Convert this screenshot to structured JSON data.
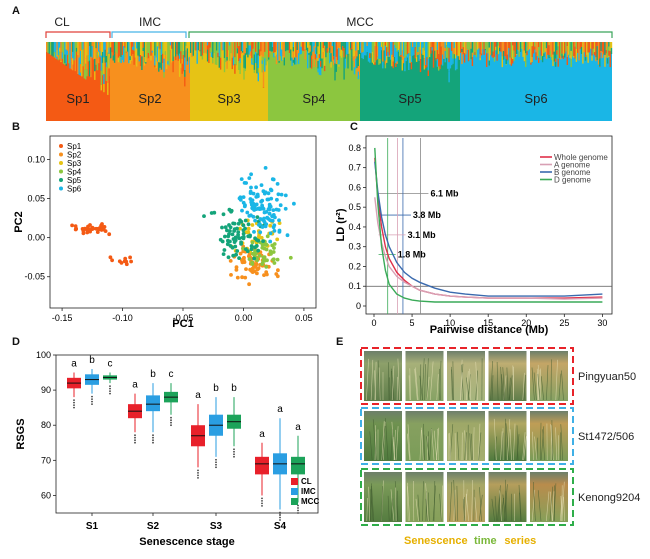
{
  "panel_labels": {
    "a": "A",
    "b": "B",
    "c": "C",
    "d": "D",
    "e": "E"
  },
  "panel_a": {
    "groups": [
      {
        "label": "CL",
        "color": "#e0413a"
      },
      {
        "label": "IMC",
        "color": "#47b3e6"
      },
      {
        "label": "MCC",
        "color": "#3aa45a"
      }
    ],
    "subpops": [
      {
        "label": "Sp1",
        "color": "#f45a14"
      },
      {
        "label": "Sp2",
        "color": "#f7901e"
      },
      {
        "label": "Sp3",
        "color": "#e6c315"
      },
      {
        "label": "Sp4",
        "color": "#8cc63f"
      },
      {
        "label": "Sp5",
        "color": "#14a47a"
      },
      {
        "label": "Sp6",
        "color": "#1ab6e6"
      }
    ]
  },
  "chart_data": [
    {
      "type": "scatter",
      "xlabel": "PC1",
      "ylabel": "PC2",
      "xlim": [
        -0.16,
        0.06
      ],
      "ylim": [
        -0.09,
        0.13
      ],
      "xticks": [
        "-0.15",
        "-0.10",
        "-0.05",
        "0.00",
        "0.05"
      ],
      "yticks": [
        "-0.05",
        "0.00",
        "0.05",
        "0.10"
      ],
      "legend": [
        "Sp1",
        "Sp2",
        "Sp3",
        "Sp4",
        "Sp5",
        "Sp6"
      ],
      "legend_colors": [
        "#f45a14",
        "#f7901e",
        "#e6c315",
        "#8cc63f",
        "#14a47a",
        "#1ab6e6"
      ],
      "legend_position": "top-left"
    },
    {
      "type": "line",
      "xlabel": "Pairwise distance (Mb)",
      "ylabel": "LD (r²)",
      "xlim": [
        0,
        31
      ],
      "ylim": [
        0,
        0.85
      ],
      "xticks": [
        "0",
        "5",
        "10",
        "15",
        "20",
        "25",
        "30"
      ],
      "yticks": [
        "0",
        "0.1",
        "0.2",
        "0.3",
        "0.4",
        "0.5",
        "0.6",
        "0.7",
        "0.8"
      ],
      "legend_position": "top-right",
      "series": [
        {
          "name": "Whole genome",
          "color": "#e0304a",
          "x": [
            0.1,
            0.5,
            1,
            1.5,
            2,
            3,
            4,
            5,
            6,
            8,
            10,
            12,
            15,
            20,
            25,
            30
          ],
          "values": [
            0.75,
            0.55,
            0.4,
            0.3,
            0.24,
            0.17,
            0.13,
            0.1,
            0.08,
            0.06,
            0.05,
            0.045,
            0.04,
            0.04,
            0.04,
            0.045
          ]
        },
        {
          "name": "A genome",
          "color": "#d8a0b4",
          "x": [
            0.1,
            0.5,
            1,
            1.5,
            2,
            3,
            4,
            5,
            6,
            8,
            10,
            12,
            15,
            20,
            25,
            30
          ],
          "values": [
            0.55,
            0.42,
            0.32,
            0.25,
            0.2,
            0.15,
            0.12,
            0.1,
            0.08,
            0.06,
            0.05,
            0.045,
            0.04,
            0.04,
            0.035,
            0.04
          ]
        },
        {
          "name": "B genome",
          "color": "#3a6aae",
          "x": [
            0.1,
            0.5,
            1,
            1.5,
            2,
            3,
            4,
            5,
            6,
            8,
            10,
            12,
            15,
            20,
            25,
            30
          ],
          "values": [
            0.73,
            0.58,
            0.45,
            0.36,
            0.3,
            0.22,
            0.17,
            0.14,
            0.12,
            0.09,
            0.07,
            0.06,
            0.05,
            0.05,
            0.05,
            0.06
          ]
        },
        {
          "name": "D genome",
          "color": "#3aaa58",
          "x": [
            0.1,
            0.5,
            1,
            1.5,
            2,
            3,
            4,
            5,
            6,
            8,
            10,
            12,
            15,
            20,
            25,
            30
          ],
          "values": [
            0.8,
            0.52,
            0.3,
            0.18,
            0.11,
            0.06,
            0.04,
            0.03,
            0.025,
            0.02,
            0.02,
            0.02,
            0.02,
            0.02,
            0.02,
            0.02
          ]
        }
      ],
      "decay_markers": [
        {
          "label": "6.1 Mb",
          "x": 6.1,
          "y": 0.57,
          "color": "#888888"
        },
        {
          "label": "3.8 Mb",
          "x": 3.8,
          "y": 0.46,
          "color": "#3a6aae"
        },
        {
          "label": "3.1 Mb",
          "x": 3.1,
          "y": 0.36,
          "color": "#d8a0b4"
        },
        {
          "label": "1.8 Mb",
          "x": 1.8,
          "y": 0.26,
          "color": "#3aaa58"
        }
      ],
      "baseline": 0.1
    },
    {
      "type": "box",
      "xlabel": "Senescence stage",
      "ylabel": "RSGS",
      "ylim": [
        55,
        100
      ],
      "yticks": [
        "60",
        "70",
        "80",
        "90",
        "100"
      ],
      "categories": [
        "S1",
        "S2",
        "S3",
        "S4"
      ],
      "legend": [
        "CL",
        "IMC",
        "MCC"
      ],
      "legend_position": "bottom-right",
      "series": [
        {
          "name": "CL",
          "color": "#e8202a",
          "values": [
            {
              "q1": 90.5,
              "med": 92,
              "q3": 93.5,
              "lo": 88,
              "hi": 95
            },
            {
              "q1": 82,
              "med": 84,
              "q3": 86,
              "lo": 78,
              "hi": 89
            },
            {
              "q1": 74,
              "med": 77,
              "q3": 80,
              "lo": 68,
              "hi": 86
            },
            {
              "q1": 66,
              "med": 69,
              "q3": 71,
              "lo": 60,
              "hi": 75
            }
          ]
        },
        {
          "name": "IMC",
          "color": "#2a9ee2",
          "values": [
            {
              "q1": 91.5,
              "med": 93,
              "q3": 94.5,
              "lo": 89,
              "hi": 96
            },
            {
              "q1": 84,
              "med": 86,
              "q3": 88.5,
              "lo": 78,
              "hi": 92
            },
            {
              "q1": 77,
              "med": 80,
              "q3": 83,
              "lo": 71,
              "hi": 88
            },
            {
              "q1": 66,
              "med": 69,
              "q3": 72,
              "lo": 56,
              "hi": 82
            }
          ]
        },
        {
          "name": "MCC",
          "color": "#1ca35a",
          "values": [
            {
              "q1": 93,
              "med": 93.6,
              "q3": 94.2,
              "lo": 92,
              "hi": 95
            },
            {
              "q1": 86.5,
              "med": 88,
              "q3": 89.5,
              "lo": 83,
              "hi": 92
            },
            {
              "q1": 79,
              "med": 81,
              "q3": 83,
              "lo": 74,
              "hi": 88
            },
            {
              "q1": 66,
              "med": 69,
              "q3": 71,
              "lo": 58,
              "hi": 77
            }
          ]
        }
      ],
      "letters": [
        [
          "a",
          "b",
          "c"
        ],
        [
          "a",
          "b",
          "c"
        ],
        [
          "a",
          "b",
          "b"
        ],
        [
          "a",
          "a",
          "a"
        ]
      ]
    }
  ],
  "panel_e": {
    "varieties": [
      {
        "name": "Pingyuan50",
        "frame": "#e8232a"
      },
      {
        "name": "St1472/506",
        "frame": "#3fb0e6"
      },
      {
        "name": "Kenong9204",
        "frame": "#2fae4a"
      }
    ],
    "caption_words": [
      {
        "text": "Senescence",
        "color": "#e6b000"
      },
      {
        "text": "time",
        "color": "#7ab83a"
      },
      {
        "text": "series",
        "color": "#e6b000"
      }
    ]
  }
}
